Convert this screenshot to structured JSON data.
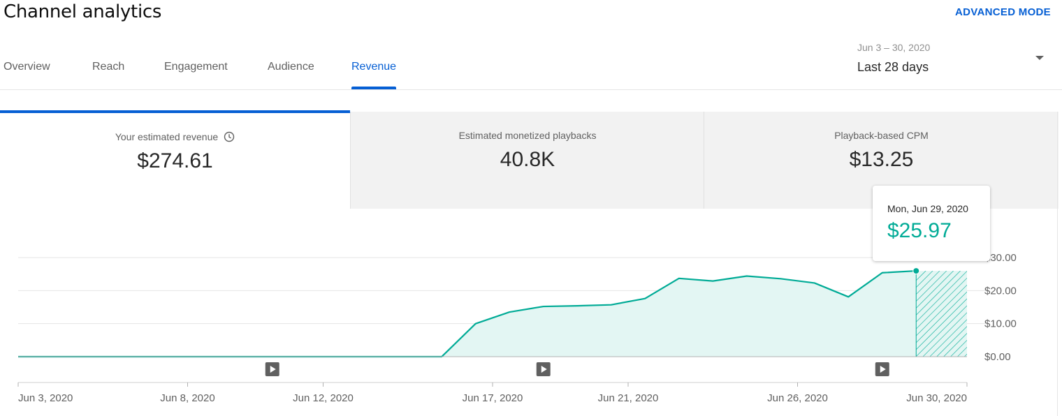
{
  "header": {
    "title": "Channel analytics",
    "advanced_mode": "ADVANCED MODE"
  },
  "tabs": [
    {
      "label": "Overview",
      "active": false
    },
    {
      "label": "Reach",
      "active": false
    },
    {
      "label": "Engagement",
      "active": false
    },
    {
      "label": "Audience",
      "active": false
    },
    {
      "label": "Revenue",
      "active": true
    }
  ],
  "date_picker": {
    "range": "Jun 3 – 30, 2020",
    "label": "Last 28 days"
  },
  "metrics": [
    {
      "label": "Your estimated revenue",
      "value": "$274.61",
      "selected": true,
      "icon": "clock-icon"
    },
    {
      "label": "Estimated monetized playbacks",
      "value": "40.8K",
      "selected": false
    },
    {
      "label": "Playback-based CPM",
      "value": "$13.25",
      "selected": false
    }
  ],
  "tooltip": {
    "date": "Mon, Jun 29, 2020",
    "value": "$25.97"
  },
  "colors": {
    "accent": "#065fd4",
    "series": "#00ab96",
    "fill": "#e3f6f3"
  },
  "chart_data": {
    "type": "area",
    "x": [
      "2020-06-03",
      "2020-06-04",
      "2020-06-05",
      "2020-06-06",
      "2020-06-07",
      "2020-06-08",
      "2020-06-09",
      "2020-06-10",
      "2020-06-11",
      "2020-06-12",
      "2020-06-13",
      "2020-06-14",
      "2020-06-15",
      "2020-06-16",
      "2020-06-17",
      "2020-06-18",
      "2020-06-19",
      "2020-06-20",
      "2020-06-21",
      "2020-06-22",
      "2020-06-23",
      "2020-06-24",
      "2020-06-25",
      "2020-06-26",
      "2020-06-27",
      "2020-06-28",
      "2020-06-29"
    ],
    "values": [
      0,
      0,
      0,
      0,
      0,
      0,
      0,
      0,
      0,
      0,
      0,
      0,
      0,
      10,
      13.5,
      15.2,
      15.4,
      15.7,
      17.6,
      23.7,
      22.9,
      24.4,
      23.6,
      22.3,
      18.1,
      25.4,
      25.97
    ],
    "partial_day": "2020-06-30",
    "x_tick_labels": [
      "Jun 3, 2020",
      "Jun 8, 2020",
      "Jun 12, 2020",
      "Jun 17, 2020",
      "Jun 21, 2020",
      "Jun 26, 2020",
      "Jun 30, 2020"
    ],
    "x_tick_dates": [
      "2020-06-03",
      "2020-06-08",
      "2020-06-12",
      "2020-06-17",
      "2020-06-21",
      "2020-06-26",
      "2020-06-30"
    ],
    "y_tick_labels": [
      "$0.00",
      "$10.00",
      "$20.00",
      "$30.00"
    ],
    "y_ticks": [
      0,
      10,
      20,
      30
    ],
    "ylim": [
      0,
      30
    ],
    "video_markers": [
      "2020-06-10",
      "2020-06-18",
      "2020-06-28"
    ],
    "highlighted": "2020-06-29",
    "grid": true
  }
}
